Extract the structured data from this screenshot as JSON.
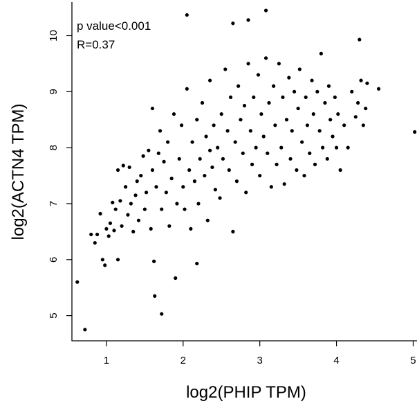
{
  "chart_data": {
    "type": "scatter",
    "xlabel": "log2(PHIP TPM)",
    "ylabel": "log2(ACTN4 TPM)",
    "xlim": [
      0.55,
      5.05
    ],
    "ylim": [
      4.55,
      10.6
    ],
    "xticks": [
      1,
      2,
      3,
      4,
      5
    ],
    "yticks": [
      5,
      6,
      7,
      8,
      9,
      10
    ],
    "grid": false,
    "annotations": [
      "p value<0.001",
      "R=0.37"
    ],
    "point_color": "#000000",
    "series": [
      {
        "points": [
          [
            0.62,
            5.6
          ],
          [
            0.72,
            4.75
          ],
          [
            0.8,
            6.45
          ],
          [
            0.85,
            6.3
          ],
          [
            0.88,
            6.45
          ],
          [
            0.92,
            6.82
          ],
          [
            0.95,
            6.0
          ],
          [
            0.98,
            5.9
          ],
          [
            1.0,
            6.55
          ],
          [
            1.03,
            6.42
          ],
          [
            1.05,
            6.65
          ],
          [
            1.08,
            7.02
          ],
          [
            1.1,
            6.52
          ],
          [
            1.12,
            6.9
          ],
          [
            1.15,
            6.0
          ],
          [
            1.15,
            7.6
          ],
          [
            1.18,
            7.05
          ],
          [
            1.2,
            6.6
          ],
          [
            1.22,
            7.68
          ],
          [
            1.25,
            7.3
          ],
          [
            1.28,
            6.8
          ],
          [
            1.3,
            7.65
          ],
          [
            1.32,
            7.0
          ],
          [
            1.35,
            6.5
          ],
          [
            1.38,
            7.15
          ],
          [
            1.4,
            7.4
          ],
          [
            1.42,
            6.7
          ],
          [
            1.45,
            7.5
          ],
          [
            1.48,
            7.85
          ],
          [
            1.5,
            6.9
          ],
          [
            1.52,
            7.2
          ],
          [
            1.55,
            7.95
          ],
          [
            1.58,
            6.55
          ],
          [
            1.6,
            7.6
          ],
          [
            1.6,
            8.7
          ],
          [
            1.62,
            5.97
          ],
          [
            1.63,
            5.35
          ],
          [
            1.65,
            7.3
          ],
          [
            1.68,
            7.9
          ],
          [
            1.7,
            8.3
          ],
          [
            1.72,
            5.03
          ],
          [
            1.72,
            6.9
          ],
          [
            1.75,
            7.75
          ],
          [
            1.78,
            7.2
          ],
          [
            1.8,
            8.1
          ],
          [
            1.82,
            6.6
          ],
          [
            1.85,
            7.45
          ],
          [
            1.88,
            8.6
          ],
          [
            1.9,
            5.67
          ],
          [
            1.92,
            7.0
          ],
          [
            1.95,
            7.8
          ],
          [
            1.98,
            8.4
          ],
          [
            2.0,
            7.3
          ],
          [
            2.02,
            6.9
          ],
          [
            2.05,
            10.37
          ],
          [
            2.05,
            9.05
          ],
          [
            2.08,
            7.6
          ],
          [
            2.1,
            6.55
          ],
          [
            2.12,
            8.1
          ],
          [
            2.15,
            7.4
          ],
          [
            2.18,
            5.93
          ],
          [
            2.18,
            8.5
          ],
          [
            2.2,
            7.0
          ],
          [
            2.22,
            7.8
          ],
          [
            2.25,
            8.8
          ],
          [
            2.28,
            7.5
          ],
          [
            2.3,
            8.2
          ],
          [
            2.32,
            6.7
          ],
          [
            2.35,
            9.2
          ],
          [
            2.35,
            7.95
          ],
          [
            2.38,
            7.65
          ],
          [
            2.4,
            8.4
          ],
          [
            2.42,
            7.25
          ],
          [
            2.45,
            8.0
          ],
          [
            2.48,
            7.1
          ],
          [
            2.5,
            8.6
          ],
          [
            2.52,
            7.8
          ],
          [
            2.55,
            9.4
          ],
          [
            2.58,
            8.3
          ],
          [
            2.6,
            7.6
          ],
          [
            2.62,
            8.9
          ],
          [
            2.65,
            6.5
          ],
          [
            2.65,
            10.22
          ],
          [
            2.68,
            8.1
          ],
          [
            2.7,
            7.4
          ],
          [
            2.72,
            9.1
          ],
          [
            2.75,
            8.5
          ],
          [
            2.78,
            7.9
          ],
          [
            2.8,
            8.75
          ],
          [
            2.82,
            7.2
          ],
          [
            2.85,
            10.28
          ],
          [
            2.85,
            9.5
          ],
          [
            2.88,
            8.3
          ],
          [
            2.9,
            7.7
          ],
          [
            2.92,
            8.9
          ],
          [
            2.95,
            8.0
          ],
          [
            2.98,
            9.3
          ],
          [
            3.0,
            7.5
          ],
          [
            3.02,
            8.6
          ],
          [
            3.05,
            8.2
          ],
          [
            3.08,
            10.45
          ],
          [
            3.08,
            9.6
          ],
          [
            3.1,
            7.9
          ],
          [
            3.12,
            8.8
          ],
          [
            3.15,
            7.3
          ],
          [
            3.18,
            9.1
          ],
          [
            3.2,
            8.4
          ],
          [
            3.22,
            7.7
          ],
          [
            3.25,
            9.5
          ],
          [
            3.28,
            8.0
          ],
          [
            3.3,
            8.9
          ],
          [
            3.32,
            7.35
          ],
          [
            3.35,
            8.5
          ],
          [
            3.38,
            9.25
          ],
          [
            3.4,
            7.8
          ],
          [
            3.42,
            8.3
          ],
          [
            3.45,
            9.0
          ],
          [
            3.48,
            7.6
          ],
          [
            3.5,
            8.7
          ],
          [
            3.52,
            9.4
          ],
          [
            3.55,
            8.1
          ],
          [
            3.58,
            7.5
          ],
          [
            3.6,
            8.9
          ],
          [
            3.62,
            8.4
          ],
          [
            3.65,
            7.9
          ],
          [
            3.68,
            9.2
          ],
          [
            3.7,
            8.6
          ],
          [
            3.72,
            7.7
          ],
          [
            3.75,
            9.0
          ],
          [
            3.78,
            8.3
          ],
          [
            3.8,
            9.68
          ],
          [
            3.82,
            8.0
          ],
          [
            3.85,
            8.8
          ],
          [
            3.88,
            7.8
          ],
          [
            3.9,
            9.1
          ],
          [
            3.92,
            8.5
          ],
          [
            3.95,
            8.2
          ],
          [
            3.98,
            8.9
          ],
          [
            4.0,
            8.0
          ],
          [
            4.02,
            8.6
          ],
          [
            4.05,
            7.6
          ],
          [
            4.1,
            8.4
          ],
          [
            4.15,
            8.0
          ],
          [
            4.2,
            9.0
          ],
          [
            4.25,
            8.55
          ],
          [
            4.28,
            8.8
          ],
          [
            4.3,
            9.93
          ],
          [
            4.32,
            9.2
          ],
          [
            4.35,
            8.4
          ],
          [
            4.38,
            8.7
          ],
          [
            4.4,
            9.15
          ],
          [
            4.55,
            9.05
          ],
          [
            5.02,
            8.28
          ]
        ]
      }
    ]
  }
}
